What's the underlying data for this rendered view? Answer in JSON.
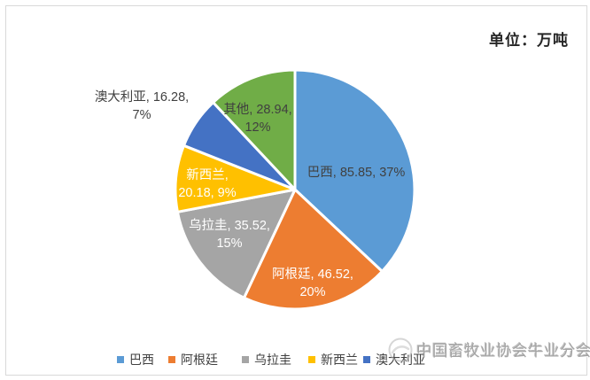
{
  "chart_data": {
    "type": "pie",
    "title": "",
    "unit_label": "单位：万吨",
    "start_angle_deg": 0,
    "direction": "clockwise",
    "legend_position": "bottom",
    "slices": [
      {
        "name": "巴西",
        "value": 85.85,
        "pct": 37,
        "color": "#5B9BD5",
        "label_lines": [
          "巴西, 85.85, 37%"
        ],
        "label_color": "#404040"
      },
      {
        "name": "阿根廷",
        "value": 46.52,
        "pct": 20,
        "color": "#ED7D31",
        "label_lines": [
          "阿根廷, 46.52,",
          "20%"
        ],
        "label_color": "#FFFFFF"
      },
      {
        "name": "乌拉圭",
        "value": 35.52,
        "pct": 15,
        "color": "#A5A5A5",
        "label_lines": [
          "乌拉圭, 35.52,",
          "15%"
        ],
        "label_color": "#FFFFFF"
      },
      {
        "name": "新西兰",
        "value": 20.18,
        "pct": 9,
        "color": "#FFC000",
        "label_lines": [
          "新西兰,",
          "20.18, 9%"
        ],
        "label_color": "#FFFFFF"
      },
      {
        "name": "澳大利亚",
        "value": 16.28,
        "pct": 7,
        "color": "#4472C4",
        "label_lines": [
          "澳大利亚, 16.28,",
          "7%"
        ],
        "label_color": "#404040"
      },
      {
        "name": "其他",
        "value": 28.94,
        "pct": 12,
        "color": "#70AD47",
        "label_lines": [
          "其他, 28.94,",
          "12%"
        ],
        "label_color": "#404040"
      }
    ],
    "legend_items": [
      "巴西",
      "阿根廷",
      "乌拉圭",
      "新西兰",
      "澳大利亚"
    ]
  },
  "watermark": {
    "text": "中国畜牧业协会牛业分会"
  }
}
